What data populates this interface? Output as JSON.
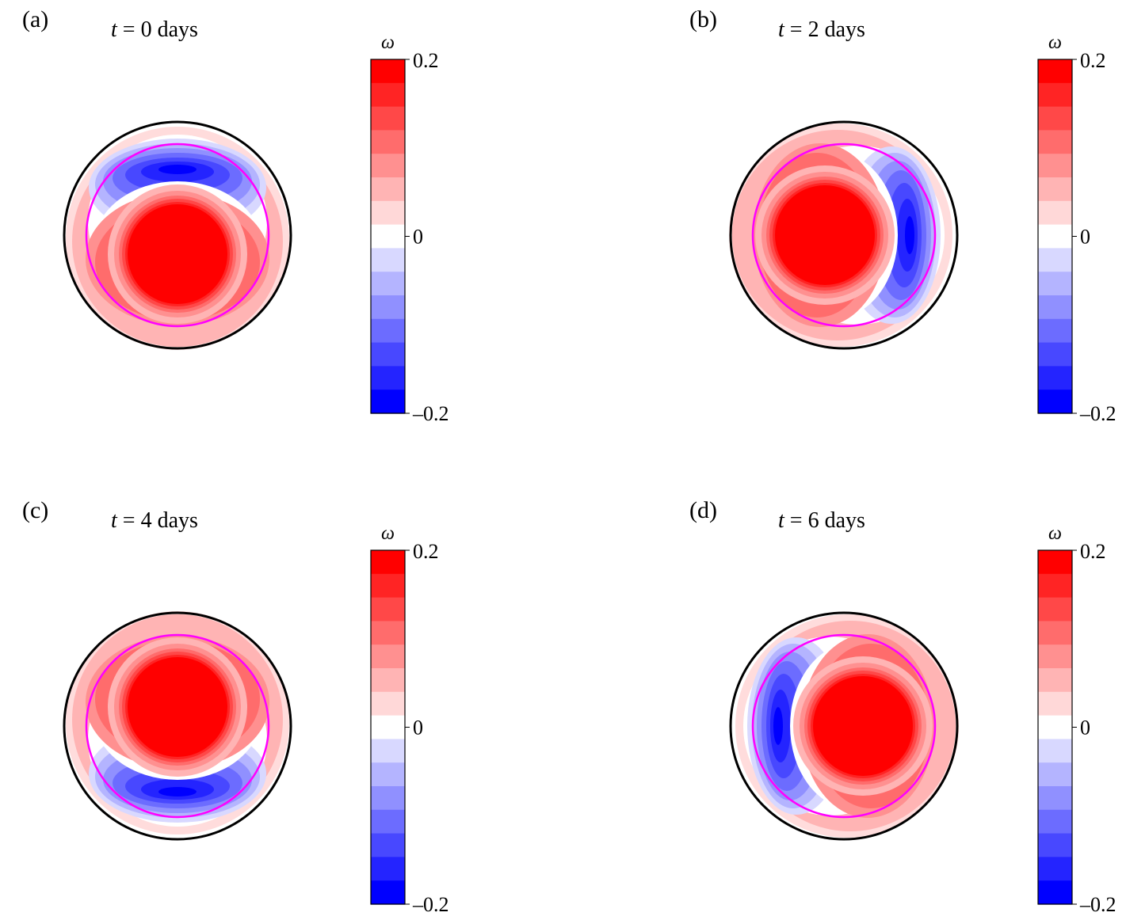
{
  "colorbar": {
    "symbol": "ω",
    "ticks": [
      "0.2",
      "0",
      "–0.2"
    ],
    "colors": [
      "#ff0000",
      "#ff2424",
      "#ff4848",
      "#ff6c6c",
      "#ff9090",
      "#ffb4b4",
      "#ffd8d8",
      "#ffffff",
      "#d8d8ff",
      "#b4b4ff",
      "#9090ff",
      "#6c6cff",
      "#4848ff",
      "#2424ff",
      "#0000ff"
    ]
  },
  "outer_circle_color": "#000000",
  "inner_circle_color": "#ff00ff",
  "panels": [
    {
      "label": "(a)",
      "time_t": "t",
      "time_rest": " = 0 days",
      "rotation_deg": 0
    },
    {
      "label": "(b)",
      "time_t": "t",
      "time_rest": " = 2 days",
      "rotation_deg": 90
    },
    {
      "label": "(c)",
      "time_t": "t",
      "time_rest": " = 4 days",
      "rotation_deg": 180
    },
    {
      "label": "(d)",
      "time_t": "t",
      "time_rest": " = 6 days",
      "rotation_deg": 270
    }
  ]
}
